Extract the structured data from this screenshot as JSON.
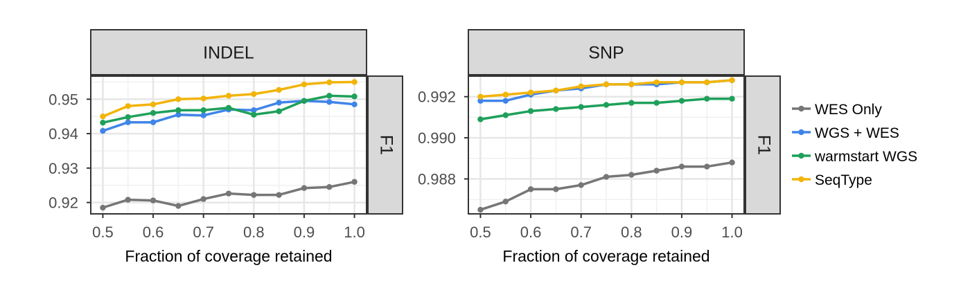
{
  "chart_data": {
    "type": "line",
    "x": [
      0.5,
      0.55,
      0.6,
      0.65,
      0.7,
      0.75,
      0.8,
      0.85,
      0.9,
      0.95,
      1.0
    ],
    "legend": {
      "position": "right",
      "entries": [
        "WES Only",
        "WGS + WES",
        "warmstart WGS",
        "SeqType"
      ]
    },
    "colors": {
      "WES Only": "#767676",
      "WGS + WES": "#3f85e8",
      "warmstart WGS": "#1ea05a",
      "SeqType": "#f2b40a"
    },
    "panels": [
      {
        "strip": "INDEL",
        "row_strip": "F1",
        "xlabel": "Fraction of coverage retained",
        "x_ticks": [
          "0.5",
          "0.6",
          "0.7",
          "0.8",
          "0.9",
          "1.0"
        ],
        "xlim": [
          0.476,
          1.024
        ],
        "ylim": [
          0.9167,
          0.9567
        ],
        "y_ticks": [
          {
            "value": 0.92,
            "label": "0.92"
          },
          {
            "value": 0.93,
            "label": "0.93"
          },
          {
            "value": 0.94,
            "label": "0.94"
          },
          {
            "value": 0.95,
            "label": "0.95"
          }
        ],
        "series": [
          {
            "name": "WES Only",
            "values": [
              0.9185,
              0.9208,
              0.9206,
              0.919,
              0.921,
              0.9226,
              0.9222,
              0.9222,
              0.9242,
              0.9245,
              0.926
            ]
          },
          {
            "name": "WGS + WES",
            "values": [
              0.9408,
              0.9433,
              0.9433,
              0.9455,
              0.9453,
              0.947,
              0.9468,
              0.949,
              0.9495,
              0.9492,
              0.9485
            ]
          },
          {
            "name": "warmstart WGS",
            "values": [
              0.9432,
              0.9448,
              0.946,
              0.9468,
              0.9468,
              0.9475,
              0.9455,
              0.9465,
              0.9495,
              0.951,
              0.9508
            ]
          },
          {
            "name": "SeqType",
            "values": [
              0.945,
              0.948,
              0.9485,
              0.95,
              0.9502,
              0.951,
              0.9515,
              0.9527,
              0.9543,
              0.9549,
              0.955
            ]
          }
        ]
      },
      {
        "strip": "SNP",
        "row_strip": "F1",
        "xlabel": "Fraction of coverage retained",
        "x_ticks": [
          "0.5",
          "0.6",
          "0.7",
          "0.8",
          "0.9",
          "1.0"
        ],
        "xlim": [
          0.476,
          1.024
        ],
        "ylim": [
          0.9863,
          0.993
        ],
        "y_ticks": [
          {
            "value": 0.988,
            "label": "0.988"
          },
          {
            "value": 0.99,
            "label": "0.990"
          },
          {
            "value": 0.992,
            "label": "0.992"
          }
        ],
        "series": [
          {
            "name": "WES Only",
            "values": [
              0.9865,
              0.9869,
              0.9875,
              0.9875,
              0.9877,
              0.9881,
              0.9882,
              0.9884,
              0.9886,
              0.9886,
              0.9888
            ]
          },
          {
            "name": "WGS + WES",
            "values": [
              0.9918,
              0.9918,
              0.9921,
              0.9923,
              0.9924,
              0.9926,
              0.9926,
              0.9926,
              0.9927,
              0.9927,
              0.9928
            ]
          },
          {
            "name": "warmstart WGS",
            "values": [
              0.9909,
              0.9911,
              0.9913,
              0.9914,
              0.9915,
              0.9916,
              0.9917,
              0.9917,
              0.9918,
              0.9919,
              0.9919
            ]
          },
          {
            "name": "SeqType",
            "values": [
              0.992,
              0.9921,
              0.9922,
              0.9923,
              0.9925,
              0.9926,
              0.9926,
              0.9927,
              0.9927,
              0.9927,
              0.9928
            ]
          }
        ]
      }
    ]
  }
}
